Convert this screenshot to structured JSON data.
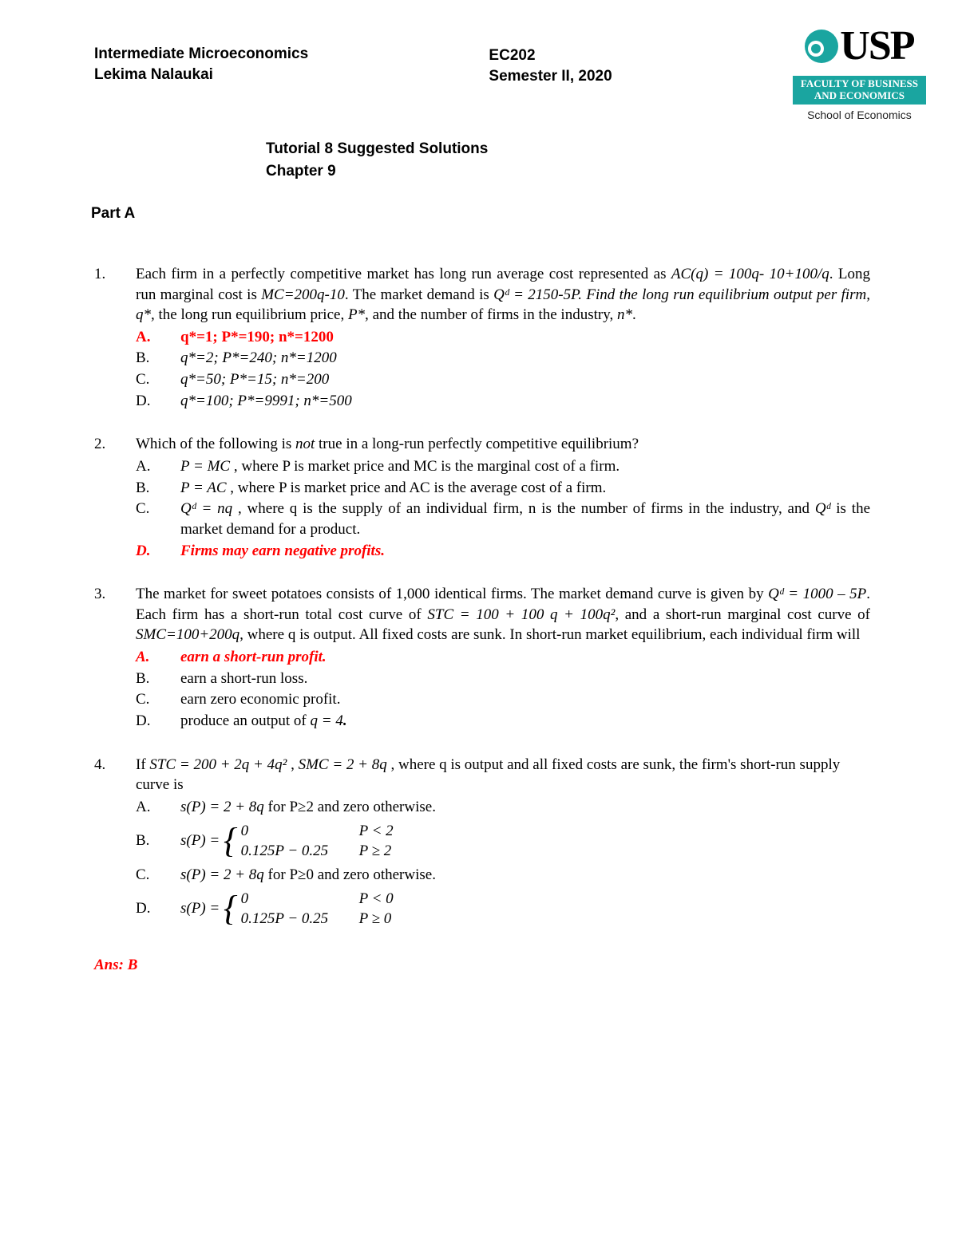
{
  "header": {
    "course": "Intermediate Microeconomics",
    "author": "Lekima Nalaukai",
    "code": "EC202",
    "semester": "Semester II, 2020",
    "logo_text": "USP",
    "faculty_line1": "FACULTY OF BUSINESS",
    "faculty_line2": "AND ECONOMICS",
    "school": "School of Economics",
    "logo_color": "#1aa5a0"
  },
  "title": {
    "line1": "Tutorial 8 Suggested Solutions",
    "line2": "Chapter 9"
  },
  "part_label": "Part A",
  "colors": {
    "answer": "#ff0000",
    "text": "#000000",
    "background": "#ffffff"
  },
  "q1": {
    "num": "1.",
    "text_pre": "Each firm in a perfectly competitive market has long run average cost represented as ",
    "ac": "AC(q) = 100q- 10+100/q",
    "text_mid1": ".  Long run marginal cost is ",
    "mc": "MC=200q-10",
    "text_mid2": ".  The market demand is ",
    "qd": "Qᵈ = 2150-5P",
    "text_end": ".     Find the long run equilibrium output per firm, ",
    "qstar": "q*,",
    "text2": " the long run equilibrium price, ",
    "pstar": "P*,",
    "text3": " and the number of firms in the industry, ",
    "nstar": "n*",
    "opt_a_letter": "A.",
    "opt_a": "q*=1; P*=190; n*=1200",
    "opt_b_letter": "B.",
    "opt_b": "q*=2; P*=240; n*=1200",
    "opt_c_letter": "C.",
    "opt_c": "q*=50; P*=15; n*=200",
    "opt_d_letter": "D.",
    "opt_d": "q*=100; P*=9991; n*=500"
  },
  "q2": {
    "num": "2.",
    "stem_pre": "Which of the following is ",
    "not": "not",
    "stem_post": " true in a long-run perfectly competitive equilibrium?",
    "opt_a_letter": "A.",
    "opt_a_pre": " ",
    "opt_a_eq": "P = MC",
    "opt_a_post": " , where P is market price and MC is the marginal cost of a firm.",
    "opt_b_letter": "B.",
    "opt_b_eq": "P = AC",
    "opt_b_post": " , where P is market price and AC is the average cost of a firm.",
    "opt_c_letter": "C.",
    "opt_c_eq": "Qᵈ = nq",
    "opt_c_post1": " , where  q  is the supply of an individual firm,  n  is the number of firms in the industry, and ",
    "opt_c_qd": "Qᵈ",
    "opt_c_post2": " is the market demand for a product.",
    "opt_d_letter": "D.",
    "opt_d": "Firms may earn negative profits."
  },
  "q3": {
    "num": "3.",
    "stem1": "The market for sweet potatoes consists of 1,000 identical firms.  The market demand curve is given by ",
    "qd": "Qᵈ = 1000 – 5P",
    "stem2": ".  Each firm has a short-run total cost curve of ",
    "stc": "STC = 100 + 100 q + 100q²",
    "stem3": ", and a short-run marginal cost curve of ",
    "smc": "SMC=100+200q,",
    "stem4": " where q is output. All fixed costs are sunk. In short-run market equilibrium, each individual firm will",
    "opt_a_letter": "A.",
    "opt_a": "earn a short-run profit.",
    "opt_b_letter": "B.",
    "opt_b": "earn a short-run loss.",
    "opt_c_letter": "C.",
    "opt_c": "earn zero economic profit.",
    "opt_d_letter": "D.",
    "opt_d_pre": "produce an output of ",
    "opt_d_eq": "q = 4",
    "opt_d_post": "."
  },
  "q4": {
    "num": "4.",
    "stem_pre": "If ",
    "stc": "STC = 200 + 2q + 4q²",
    "stem_mid": " ,  ",
    "smc": "SMC = 2 + 8q",
    "stem_post": " , where q is output and all fixed costs are sunk, the firm's short-run supply curve is",
    "opt_a_letter": "A.",
    "opt_a_pre": "s(P) = 2 + 8q",
    "opt_a_post": " for P≥2 and zero otherwise.",
    "opt_b_letter": "B.",
    "opt_b_lhs": "s(P) = ",
    "opt_b_c1a": "0",
    "opt_b_c1b": "P < 2",
    "opt_b_c2a": "0.125P − 0.25",
    "opt_b_c2b": "P ≥ 2",
    "opt_c_letter": "C.",
    "opt_c_pre": "s(P) = 2 + 8q",
    "opt_c_post": " for P≥0 and zero otherwise.",
    "opt_d_letter": "D.",
    "opt_d_lhs": "s(P) = ",
    "opt_d_c1a": "0",
    "opt_d_c1b": "P < 0",
    "opt_d_c2a": "0.125P − 0.25",
    "opt_d_c2b": "P ≥ 0"
  },
  "answer_label": "Ans: B"
}
